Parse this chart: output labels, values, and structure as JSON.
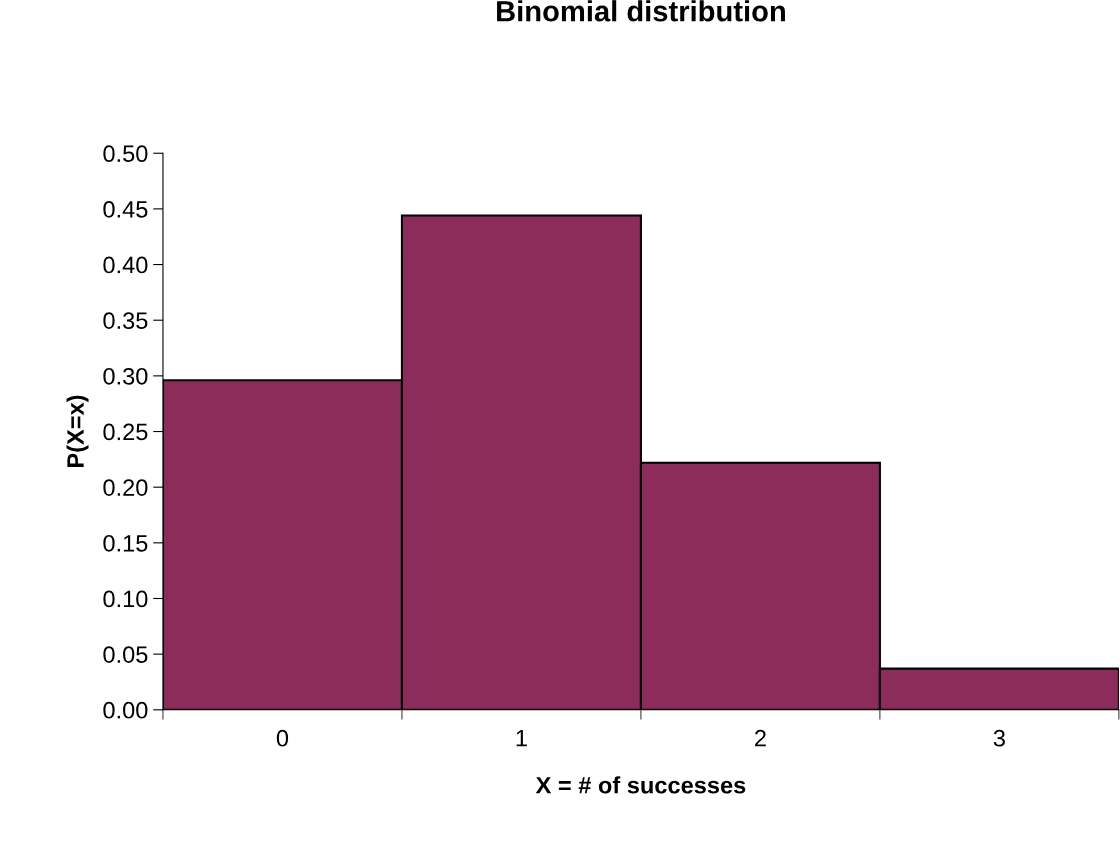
{
  "chart_data": {
    "type": "bar",
    "title": "Binomial distribution",
    "xlabel": "X = # of successes",
    "ylabel": "P(X=x)",
    "categories": [
      "0",
      "1",
      "2",
      "3"
    ],
    "values": [
      0.296,
      0.444,
      0.222,
      0.037
    ],
    "color": "#8b2c5a",
    "ylim": [
      0,
      0.5
    ],
    "yticks": [
      {
        "value": 0,
        "label": "0.00"
      },
      {
        "value": 0.05,
        "label": "0.05"
      },
      {
        "value": 0.1,
        "label": "0.10"
      },
      {
        "value": 0.15,
        "label": "0.15"
      },
      {
        "value": 0.2,
        "label": "0.20"
      },
      {
        "value": 0.25,
        "label": "0.25"
      },
      {
        "value": 0.3,
        "label": "0.30"
      },
      {
        "value": 0.35,
        "label": "0.35"
      },
      {
        "value": 0.4,
        "label": "0.40"
      },
      {
        "value": 0.45,
        "label": "0.45"
      },
      {
        "value": 0.5,
        "label": "0.50"
      }
    ],
    "grid": false,
    "legend": false
  }
}
